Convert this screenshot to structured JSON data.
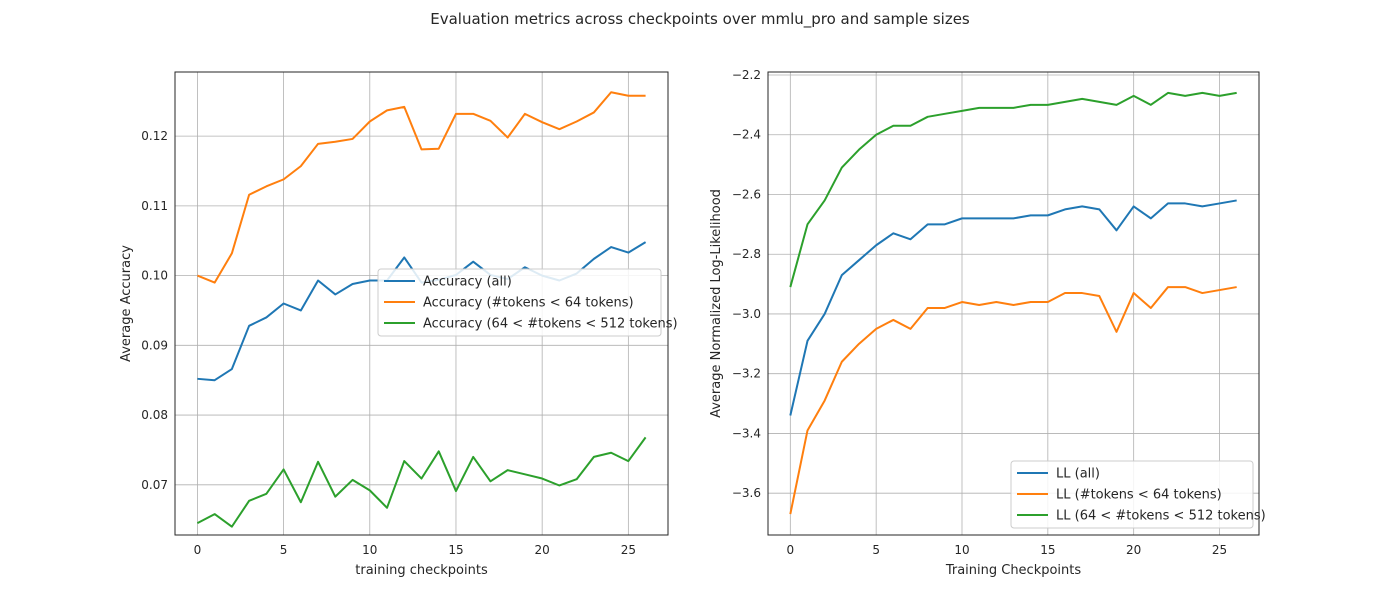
{
  "figure": {
    "title": "Evaluation metrics across checkpoints over mmlu_pro and sample sizes"
  },
  "colors": {
    "blue": "#1f77b4",
    "orange": "#ff7f0e",
    "green": "#2ca02c"
  },
  "chart_data": [
    {
      "type": "line",
      "xlabel": "training checkpoints",
      "ylabel": "Average Accuracy",
      "xlim": [
        -1.3,
        27.3
      ],
      "ylim": [
        0.0628,
        0.1292
      ],
      "xticks": [
        0,
        5,
        10,
        15,
        20,
        25
      ],
      "yticks": [
        0.07,
        0.08,
        0.09,
        0.1,
        0.11,
        0.12
      ],
      "ytick_labels": [
        "0.07",
        "0.08",
        "0.09",
        "0.10",
        "0.11",
        "0.12"
      ],
      "grid": true,
      "legend_position": "center-right",
      "x": [
        0,
        1,
        2,
        3,
        4,
        5,
        6,
        7,
        8,
        9,
        10,
        11,
        12,
        13,
        14,
        15,
        16,
        17,
        18,
        19,
        20,
        21,
        22,
        23,
        24,
        25,
        26
      ],
      "series": [
        {
          "name": "Accuracy (all)",
          "color": "#1f77b4",
          "values": [
            0.0852,
            0.085,
            0.0866,
            0.0928,
            0.094,
            0.096,
            0.095,
            0.0993,
            0.0973,
            0.0988,
            0.0993,
            0.0993,
            0.1026,
            0.099,
            0.0994,
            0.1001,
            0.102,
            0.1001,
            0.0995,
            0.1012,
            0.1,
            0.0993,
            0.1003,
            0.1024,
            0.1041,
            0.1033,
            0.1048
          ]
        },
        {
          "name": "Accuracy (#tokens < 64 tokens)",
          "color": "#ff7f0e",
          "values": [
            0.1,
            0.099,
            0.1032,
            0.1116,
            0.1128,
            0.1138,
            0.1157,
            0.1189,
            0.1192,
            0.1196,
            0.1221,
            0.1237,
            0.1242,
            0.1181,
            0.1182,
            0.1232,
            0.1232,
            0.1222,
            0.1198,
            0.1232,
            0.122,
            0.121,
            0.1221,
            0.1234,
            0.1263,
            0.1258,
            0.1258
          ]
        },
        {
          "name": "Accuracy (64 < #tokens < 512 tokens)",
          "color": "#2ca02c",
          "values": [
            0.0645,
            0.0658,
            0.064,
            0.0677,
            0.0687,
            0.0722,
            0.0675,
            0.0733,
            0.0683,
            0.0707,
            0.0692,
            0.0667,
            0.0734,
            0.0709,
            0.0748,
            0.0691,
            0.074,
            0.0705,
            0.0721,
            0.0715,
            0.0709,
            0.0699,
            0.0708,
            0.074,
            0.0746,
            0.0734,
            0.0768
          ]
        }
      ]
    },
    {
      "type": "line",
      "xlabel": "Training Checkpoints",
      "ylabel": "Average Normalized Log-Likelihood",
      "xlim": [
        -1.3,
        27.3
      ],
      "ylim": [
        -3.74,
        -2.19
      ],
      "xticks": [
        0,
        5,
        10,
        15,
        20,
        25
      ],
      "yticks": [
        -3.6,
        -3.4,
        -3.2,
        -3.0,
        -2.8,
        -2.6,
        -2.4,
        -2.2
      ],
      "ytick_labels": [
        "−3.6",
        "−3.4",
        "−3.2",
        "−3.0",
        "−2.8",
        "−2.6",
        "−2.4",
        "−2.2"
      ],
      "grid": true,
      "legend_position": "lower-right",
      "x": [
        0,
        1,
        2,
        3,
        4,
        5,
        6,
        7,
        8,
        9,
        10,
        11,
        12,
        13,
        14,
        15,
        16,
        17,
        18,
        19,
        20,
        21,
        22,
        23,
        24,
        25,
        26
      ],
      "series": [
        {
          "name": "LL (all)",
          "color": "#1f77b4",
          "values": [
            -3.34,
            -3.09,
            -3.0,
            -2.87,
            -2.82,
            -2.77,
            -2.73,
            -2.75,
            -2.7,
            -2.7,
            -2.68,
            -2.68,
            -2.68,
            -2.68,
            -2.67,
            -2.67,
            -2.65,
            -2.64,
            -2.65,
            -2.72,
            -2.64,
            -2.68,
            -2.63,
            -2.63,
            -2.64,
            -2.63,
            -2.62
          ]
        },
        {
          "name": "LL (#tokens < 64 tokens)",
          "color": "#ff7f0e",
          "values": [
            -3.67,
            -3.39,
            -3.29,
            -3.16,
            -3.1,
            -3.05,
            -3.02,
            -3.05,
            -2.98,
            -2.98,
            -2.96,
            -2.97,
            -2.96,
            -2.97,
            -2.96,
            -2.96,
            -2.93,
            -2.93,
            -2.94,
            -3.06,
            -2.93,
            -2.98,
            -2.91,
            -2.91,
            -2.93,
            -2.92,
            -2.91
          ]
        },
        {
          "name": "LL (64 < #tokens < 512 tokens)",
          "color": "#2ca02c",
          "values": [
            -2.91,
            -2.7,
            -2.62,
            -2.51,
            -2.45,
            -2.4,
            -2.37,
            -2.37,
            -2.34,
            -2.33,
            -2.32,
            -2.31,
            -2.31,
            -2.31,
            -2.3,
            -2.3,
            -2.29,
            -2.28,
            -2.29,
            -2.3,
            -2.27,
            -2.3,
            -2.26,
            -2.27,
            -2.26,
            -2.27,
            -2.26
          ]
        }
      ]
    }
  ]
}
